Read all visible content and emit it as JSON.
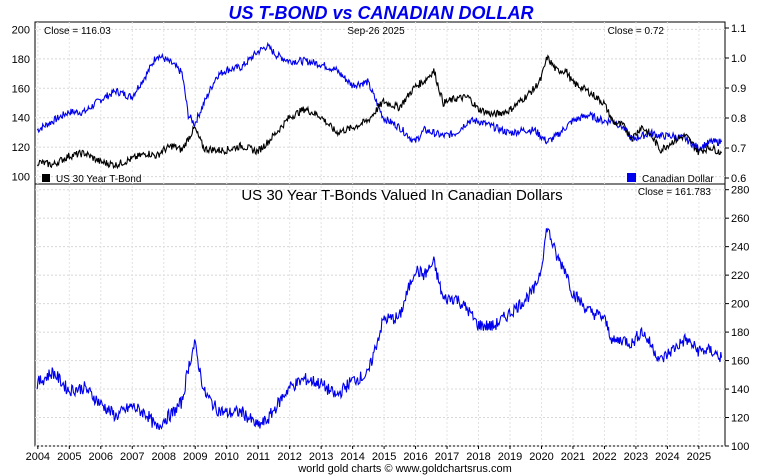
{
  "chart_data": [
    {
      "type": "line",
      "title": "US T-BOND vs CANADIAN DOLLAR",
      "date_label": "Sep-26  2025",
      "close_left": "Close = 116.03",
      "close_right": "Close = 0.72",
      "left_axis": {
        "ylim": [
          95,
          205
        ],
        "ticks": [
          "200",
          "180",
          "160",
          "140",
          "120",
          "100"
        ]
      },
      "right_axis": {
        "ylim": [
          0.58,
          1.12
        ],
        "ticks": [
          "1.1",
          "1.0",
          "0.9",
          "0.8",
          "0.7",
          "0.6"
        ]
      },
      "x": [
        2004.0,
        2004.5,
        2005.0,
        2005.5,
        2006.0,
        2006.5,
        2007.0,
        2007.5,
        2007.8,
        2008.0,
        2008.3,
        2008.6,
        2008.8,
        2009.0,
        2009.3,
        2009.7,
        2010.0,
        2010.5,
        2011.0,
        2011.3,
        2011.6,
        2012.0,
        2012.5,
        2013.0,
        2013.5,
        2014.0,
        2014.5,
        2015.0,
        2015.5,
        2016.0,
        2016.3,
        2016.6,
        2016.9,
        2017.3,
        2017.7,
        2018.0,
        2018.5,
        2019.0,
        2019.5,
        2019.8,
        2020.0,
        2020.2,
        2020.5,
        2020.8,
        2021.0,
        2021.5,
        2022.0,
        2022.3,
        2022.6,
        2022.9,
        2023.2,
        2023.5,
        2023.8,
        2024.2,
        2024.6,
        2025.0,
        2025.4,
        2025.74
      ],
      "series": [
        {
          "name": "US 30 Year T-Bond",
          "axis": "left",
          "color": "#000000",
          "legend": "US 30 Year T-Bond",
          "values": [
            110,
            108,
            114,
            116,
            110,
            108,
            112,
            116,
            114,
            118,
            121,
            118,
            126,
            133,
            119,
            118,
            118,
            121,
            117,
            123,
            130,
            140,
            146,
            141,
            130,
            133,
            138,
            151,
            147,
            161,
            165,
            172,
            150,
            153,
            154,
            146,
            142,
            145,
            154,
            160,
            166,
            181,
            172,
            172,
            164,
            158,
            150,
            137,
            135,
            126,
            134,
            128,
            118,
            124,
            128,
            117,
            120,
            116
          ]
        },
        {
          "name": "Canadian Dollar",
          "axis": "right",
          "color": "#0000ee",
          "legend": "Canadian Dollar",
          "values": [
            0.76,
            0.79,
            0.82,
            0.82,
            0.86,
            0.89,
            0.87,
            0.95,
            1.01,
            1.0,
            0.98,
            0.95,
            0.81,
            0.78,
            0.85,
            0.94,
            0.96,
            0.97,
            1.02,
            1.04,
            1.01,
            0.99,
            0.99,
            0.98,
            0.96,
            0.91,
            0.92,
            0.8,
            0.77,
            0.72,
            0.76,
            0.75,
            0.74,
            0.75,
            0.79,
            0.79,
            0.77,
            0.75,
            0.76,
            0.76,
            0.74,
            0.72,
            0.74,
            0.77,
            0.79,
            0.81,
            0.79,
            0.79,
            0.77,
            0.73,
            0.74,
            0.75,
            0.74,
            0.74,
            0.73,
            0.7,
            0.72,
            0.72
          ]
        }
      ]
    },
    {
      "type": "line",
      "title": "US 30 Year T-Bonds Valued In Canadian Dollars",
      "close": "Close = 161.783",
      "ylim": [
        100,
        284
      ],
      "y_ticks": [
        "280",
        "260",
        "240",
        "220",
        "200",
        "180",
        "160",
        "140",
        "120",
        "100"
      ],
      "x_ticks": [
        "2004",
        "2005",
        "2006",
        "2007",
        "2008",
        "2009",
        "2010",
        "2011",
        "2012",
        "2013",
        "2014",
        "2015",
        "2016",
        "2017",
        "2018",
        "2019",
        "2020",
        "2021",
        "2022",
        "2023",
        "2024",
        "2025"
      ],
      "x": [
        2004.0,
        2004.5,
        2005.0,
        2005.5,
        2006.0,
        2006.5,
        2007.0,
        2007.5,
        2007.8,
        2008.0,
        2008.3,
        2008.6,
        2008.8,
        2009.0,
        2009.3,
        2009.7,
        2010.0,
        2010.5,
        2011.0,
        2011.3,
        2011.6,
        2012.0,
        2012.5,
        2013.0,
        2013.5,
        2014.0,
        2014.5,
        2015.0,
        2015.5,
        2016.0,
        2016.3,
        2016.6,
        2016.9,
        2017.3,
        2017.7,
        2018.0,
        2018.5,
        2019.0,
        2019.5,
        2019.8,
        2020.0,
        2020.2,
        2020.5,
        2020.8,
        2021.0,
        2021.5,
        2022.0,
        2022.3,
        2022.6,
        2022.9,
        2023.2,
        2023.5,
        2023.8,
        2024.2,
        2024.6,
        2025.0,
        2025.4,
        2025.74
      ],
      "series": [
        {
          "name": "US 30 Year T-Bonds Valued In Canadian Dollars",
          "color": "#0000ee",
          "values": [
            144,
            152,
            139,
            141,
            130,
            121,
            128,
            122,
            112,
            118,
            123,
            131,
            155,
            172,
            138,
            126,
            123,
            124,
            114,
            118,
            128,
            141,
            147,
            144,
            135,
            146,
            150,
            189,
            190,
            224,
            220,
            229,
            203,
            204,
            195,
            185,
            184,
            193,
            203,
            210,
            224,
            254,
            233,
            223,
            208,
            195,
            190,
            173,
            175,
            172,
            181,
            171,
            160,
            168,
            175,
            167,
            167,
            162
          ]
        }
      ]
    }
  ],
  "footer": "world gold charts © www.goldchartsrus.com"
}
